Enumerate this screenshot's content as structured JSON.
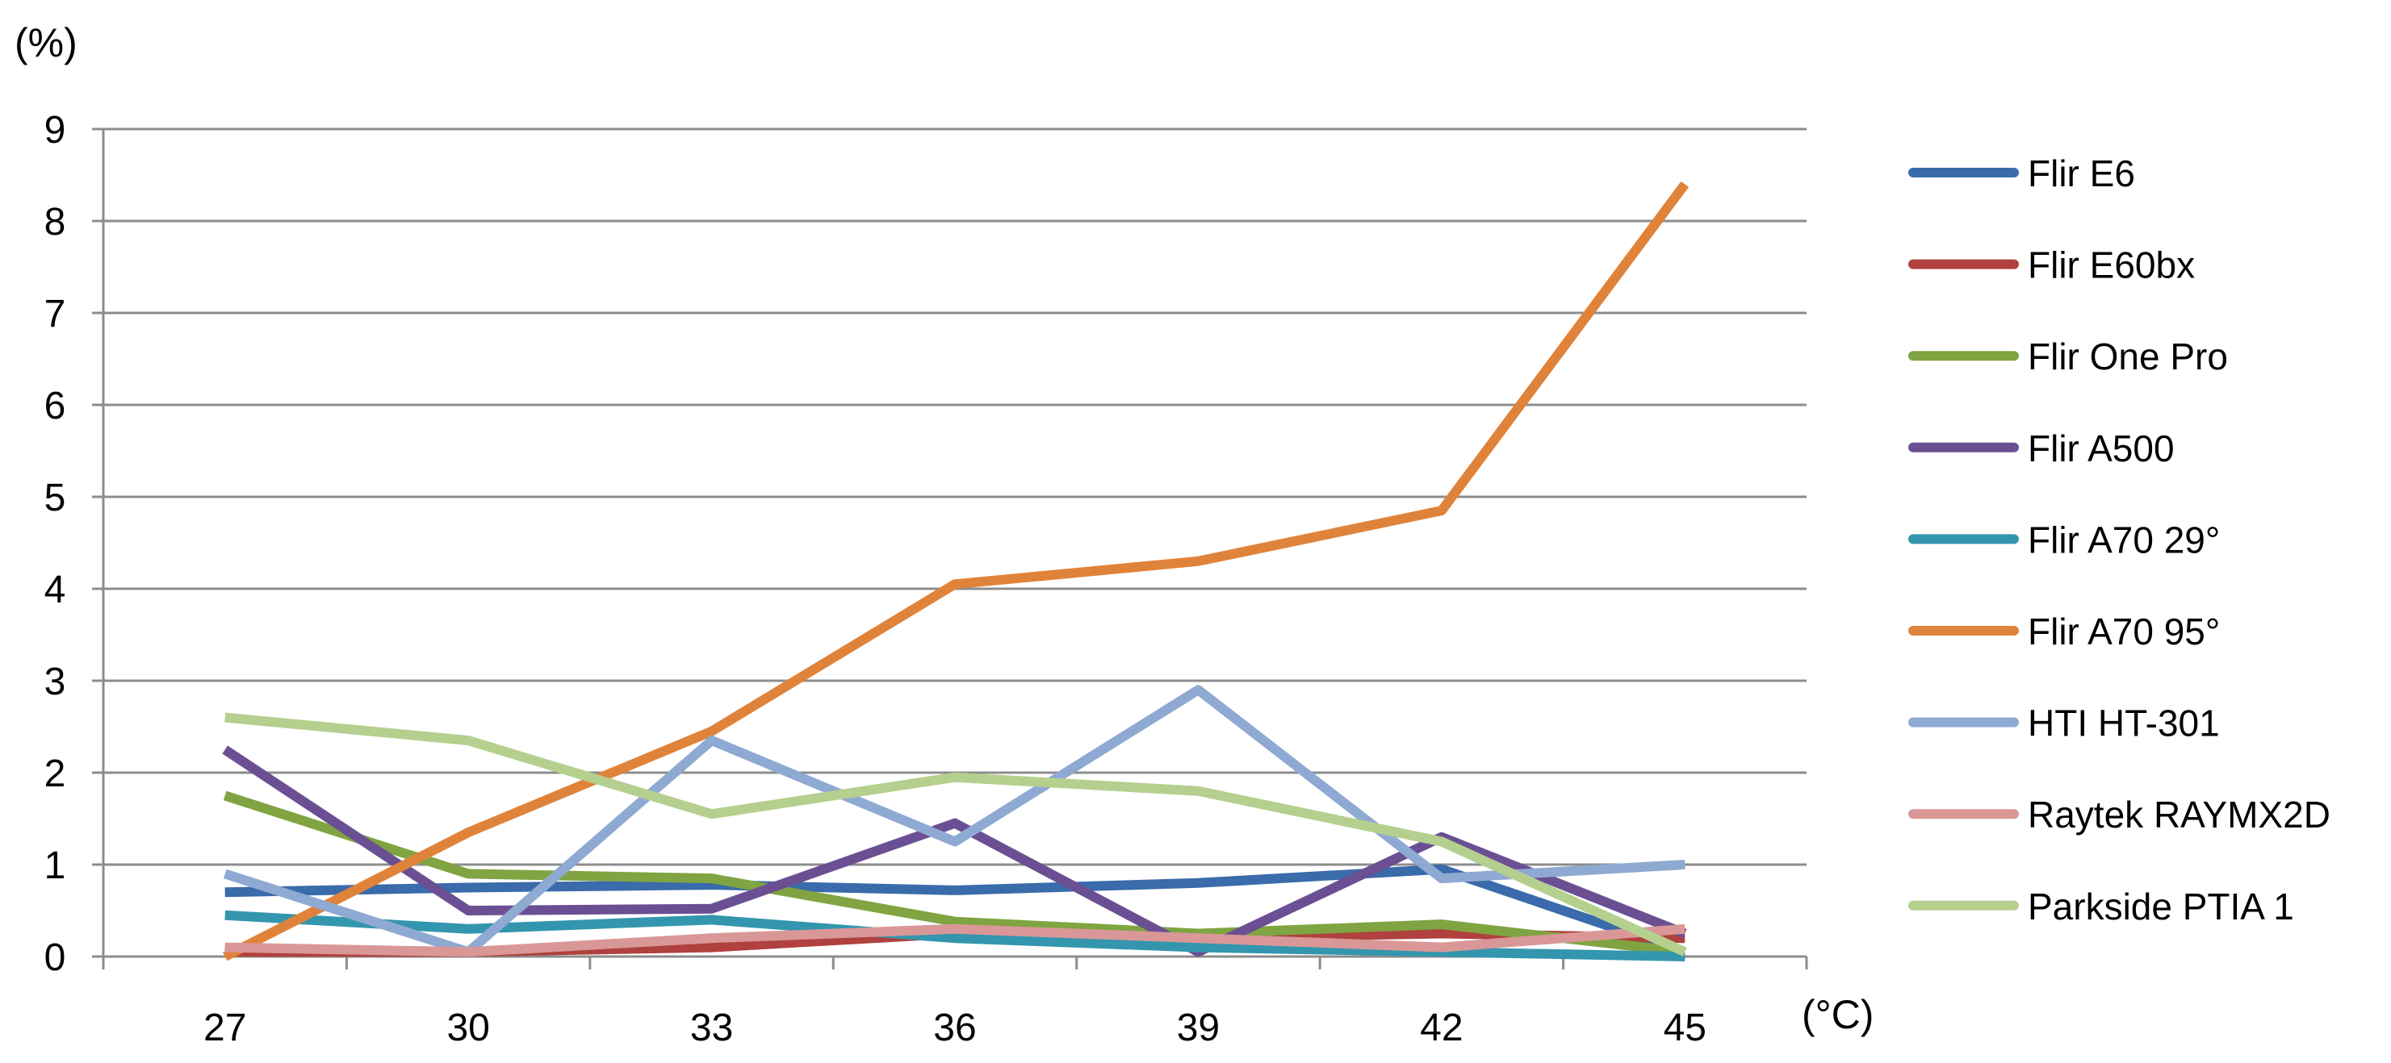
{
  "chart_data": {
    "type": "line",
    "title": "",
    "xlabel": "(°C)",
    "ylabel": "(%)",
    "categories": [
      "27",
      "30",
      "33",
      "36",
      "39",
      "42",
      "45"
    ],
    "ylim": [
      0,
      9
    ],
    "yticks": [
      0,
      1,
      2,
      3,
      4,
      5,
      6,
      7,
      8,
      9
    ],
    "grid": "horizontal",
    "legend_position": "right",
    "series": [
      {
        "name": "Flir E6",
        "color": "#3A6BAA",
        "values": [
          0.7,
          0.75,
          0.78,
          0.72,
          0.8,
          0.95,
          0.05
        ]
      },
      {
        "name": "Flir E60bx",
        "color": "#B0413E",
        "values": [
          0.05,
          0.05,
          0.1,
          0.25,
          0.2,
          0.25,
          0.2
        ]
      },
      {
        "name": "Flir One Pro",
        "color": "#7FA441",
        "values": [
          1.75,
          0.9,
          0.85,
          0.38,
          0.25,
          0.35,
          0.05
        ]
      },
      {
        "name": "Flir A500",
        "color": "#6B4F93",
        "values": [
          2.25,
          0.5,
          0.52,
          1.45,
          0.05,
          1.3,
          0.25
        ]
      },
      {
        "name": "Flir A70 29°",
        "color": "#3396AE",
        "values": [
          0.45,
          0.3,
          0.4,
          0.2,
          0.1,
          0.05,
          0.0
        ]
      },
      {
        "name": "Flir A70 95°",
        "color": "#E0833A",
        "values": [
          0.0,
          1.35,
          2.45,
          4.05,
          4.3,
          4.85,
          8.4
        ]
      },
      {
        "name": "HTI HT-301",
        "color": "#8EA9D2",
        "values": [
          0.9,
          0.05,
          2.35,
          1.25,
          2.9,
          0.85,
          1.0
        ]
      },
      {
        "name": "Raytek RAYMX2D",
        "color": "#D99797",
        "values": [
          0.1,
          0.05,
          0.2,
          0.3,
          0.2,
          0.1,
          0.3
        ]
      },
      {
        "name": "Parkside PTIA 1",
        "color": "#B5CF8E",
        "values": [
          2.6,
          2.35,
          1.55,
          1.95,
          1.8,
          1.25,
          0.05
        ]
      }
    ]
  }
}
